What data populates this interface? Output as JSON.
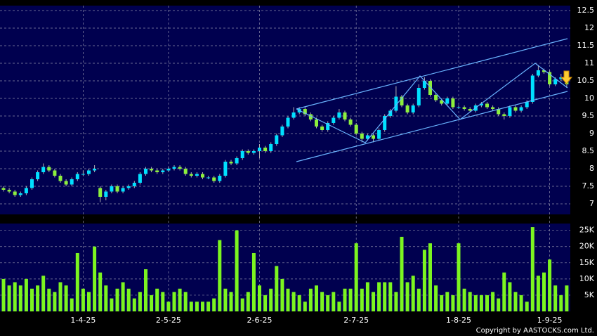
{
  "chart_data": [
    {
      "type": "candlestick",
      "up_color": "#00e0ff",
      "down_color": "#8cf03c",
      "grid": true,
      "ylim": [
        6.7,
        12.64
      ],
      "yticks": [
        7,
        7.5,
        8,
        8.5,
        9,
        9.5,
        10,
        10.5,
        11,
        11.5,
        12,
        12.5
      ],
      "open": [
        7.45,
        7.4,
        7.35,
        7.25,
        7.3,
        7.45,
        7.7,
        7.9,
        8.05,
        7.95,
        7.8,
        7.65,
        7.55,
        7.7,
        7.85,
        7.85,
        7.95,
        7.45,
        7.2,
        7.35,
        7.5,
        7.35,
        7.45,
        7.5,
        7.6,
        7.85,
        8.0,
        7.95,
        7.9,
        7.95,
        8.0,
        8.05,
        8.0,
        7.85,
        7.8,
        7.85,
        7.75,
        7.75,
        7.65,
        7.8,
        8.2,
        8.15,
        8.3,
        8.5,
        8.45,
        8.5,
        8.6,
        8.5,
        8.7,
        8.95,
        9.2,
        9.45,
        9.6,
        9.7,
        9.55,
        9.4,
        9.2,
        9.1,
        9.3,
        9.45,
        9.6,
        9.4,
        9.25,
        9.0,
        8.85,
        8.95,
        8.85,
        9.1,
        9.5,
        9.65,
        10.05,
        9.8,
        9.6,
        9.8,
        10.3,
        10.5,
        10.1,
        9.95,
        9.85,
        10.0,
        9.75,
        9.75,
        9.7,
        9.65,
        9.8,
        9.85,
        9.75,
        9.7,
        9.55,
        9.5,
        9.75,
        9.65,
        9.75,
        9.9,
        10.65,
        10.8,
        10.75,
        10.4,
        10.55,
        10.6
      ],
      "high": [
        7.5,
        7.45,
        7.4,
        7.35,
        7.5,
        7.75,
        7.95,
        8.15,
        8.1,
        8.0,
        7.85,
        7.7,
        7.75,
        7.9,
        7.95,
        8.0,
        8.1,
        7.5,
        7.4,
        7.55,
        7.55,
        7.5,
        7.55,
        7.65,
        7.9,
        8.05,
        8.05,
        8.0,
        8.0,
        8.05,
        8.1,
        8.1,
        8.05,
        7.9,
        7.9,
        7.9,
        7.8,
        7.8,
        7.85,
        8.25,
        8.25,
        8.35,
        8.55,
        8.55,
        8.55,
        8.7,
        8.65,
        8.75,
        9.0,
        9.25,
        9.5,
        9.75,
        9.75,
        9.75,
        9.6,
        9.45,
        9.25,
        9.35,
        9.5,
        9.7,
        9.65,
        9.45,
        9.3,
        9.05,
        9.0,
        9.0,
        9.15,
        9.55,
        9.7,
        10.35,
        10.1,
        9.85,
        9.85,
        10.4,
        10.6,
        10.55,
        10.15,
        10.0,
        10.05,
        10.05,
        9.8,
        9.8,
        9.75,
        9.85,
        9.9,
        9.9,
        9.8,
        9.75,
        9.6,
        9.8,
        9.8,
        9.8,
        9.95,
        10.7,
        10.95,
        10.85,
        10.8,
        10.6,
        10.7,
        10.65
      ],
      "low": [
        7.35,
        7.3,
        7.2,
        7.2,
        7.25,
        7.4,
        7.65,
        7.85,
        7.9,
        7.75,
        7.6,
        7.5,
        7.5,
        7.65,
        7.8,
        7.8,
        7.9,
        7.05,
        7.1,
        7.3,
        7.3,
        7.3,
        7.4,
        7.45,
        7.55,
        7.8,
        7.9,
        7.85,
        7.85,
        7.9,
        7.95,
        7.95,
        7.8,
        7.75,
        7.75,
        7.7,
        7.7,
        7.6,
        7.6,
        7.75,
        8.1,
        8.1,
        8.25,
        8.4,
        8.4,
        8.3,
        8.45,
        8.45,
        8.65,
        8.9,
        9.15,
        9.4,
        9.55,
        9.5,
        9.35,
        9.15,
        9.05,
        9.05,
        9.25,
        9.4,
        9.35,
        9.2,
        8.95,
        8.75,
        8.8,
        8.75,
        8.8,
        9.05,
        9.45,
        9.6,
        9.75,
        9.55,
        9.55,
        9.75,
        10.25,
        10.05,
        9.9,
        9.8,
        9.8,
        9.7,
        9.7,
        9.65,
        9.6,
        9.6,
        9.75,
        9.7,
        9.65,
        9.5,
        9.4,
        9.45,
        9.6,
        9.6,
        9.7,
        9.85,
        10.6,
        10.7,
        10.35,
        10.35,
        10.5,
        10.3
      ],
      "close": [
        7.4,
        7.35,
        7.25,
        7.3,
        7.45,
        7.7,
        7.9,
        8.05,
        7.95,
        7.8,
        7.65,
        7.55,
        7.7,
        7.85,
        7.85,
        7.95,
        8.0,
        7.2,
        7.35,
        7.5,
        7.35,
        7.45,
        7.5,
        7.6,
        7.85,
        8.0,
        7.95,
        7.9,
        7.95,
        8.0,
        8.05,
        8.0,
        7.85,
        7.8,
        7.85,
        7.75,
        7.75,
        7.65,
        7.8,
        8.2,
        8.15,
        8.3,
        8.5,
        8.45,
        8.5,
        8.6,
        8.5,
        8.7,
        8.95,
        9.2,
        9.45,
        9.6,
        9.7,
        9.55,
        9.4,
        9.2,
        9.1,
        9.3,
        9.45,
        9.6,
        9.4,
        9.25,
        9.0,
        8.85,
        8.95,
        8.85,
        9.1,
        9.5,
        9.65,
        10.05,
        9.8,
        9.6,
        9.8,
        10.3,
        10.5,
        10.1,
        9.95,
        9.85,
        10.0,
        9.75,
        9.75,
        9.7,
        9.65,
        9.8,
        9.85,
        9.75,
        9.7,
        9.55,
        9.5,
        9.75,
        9.65,
        9.75,
        9.9,
        10.65,
        10.8,
        10.75,
        10.4,
        10.55,
        10.6,
        10.4
      ]
    },
    {
      "type": "bar",
      "color": "#7cf520",
      "grid": true,
      "ylim": [
        0,
        27100
      ],
      "yticks": [
        {
          "value": 5000,
          "label": "5K"
        },
        {
          "value": 10000,
          "label": "10K"
        },
        {
          "value": 15000,
          "label": "15K"
        },
        {
          "value": 20000,
          "label": "20K"
        },
        {
          "value": 25000,
          "label": "25K"
        }
      ],
      "categories": [
        null,
        null,
        null,
        null,
        null,
        null,
        null,
        null,
        null,
        null,
        null,
        null,
        null,
        null,
        "1-4-25",
        null,
        null,
        null,
        null,
        null,
        null,
        null,
        null,
        null,
        null,
        null,
        null,
        null,
        null,
        "2-5-25",
        null,
        null,
        null,
        null,
        null,
        null,
        null,
        null,
        null,
        null,
        null,
        null,
        null,
        null,
        null,
        "2-6-25",
        null,
        null,
        null,
        null,
        null,
        null,
        null,
        null,
        null,
        null,
        null,
        null,
        null,
        null,
        null,
        null,
        "2-7-25",
        null,
        null,
        null,
        null,
        null,
        null,
        null,
        null,
        null,
        null,
        null,
        null,
        null,
        null,
        null,
        null,
        null,
        "1-8-25",
        null,
        null,
        null,
        null,
        null,
        null,
        null,
        null,
        null,
        null,
        null,
        null,
        null,
        null,
        null,
        "1-9-25",
        null,
        null,
        null
      ],
      "values": [
        10000,
        8000,
        9000,
        8000,
        10000,
        7000,
        8000,
        11000,
        7000,
        6000,
        9000,
        8000,
        4000,
        18000,
        7000,
        6000,
        20000,
        12000,
        8000,
        4000,
        7000,
        9000,
        7000,
        4000,
        6000,
        13000,
        5000,
        7000,
        6000,
        3000,
        6000,
        7000,
        6000,
        3000,
        3000,
        3000,
        3000,
        4000,
        22000,
        7000,
        6000,
        25000,
        4000,
        6000,
        18000,
        8000,
        5000,
        7000,
        14000,
        10000,
        7000,
        6000,
        5000,
        3000,
        7000,
        8000,
        6000,
        5000,
        6000,
        3000,
        7000,
        7000,
        21000,
        7000,
        9000,
        6000,
        9000,
        9000,
        9000,
        6000,
        23000,
        9000,
        11000,
        7000,
        19000,
        21000,
        8000,
        5000,
        6000,
        5000,
        21000,
        7000,
        6000,
        5000,
        5000,
        5000,
        6000,
        4000,
        12000,
        9000,
        6000,
        5000,
        3000,
        26000,
        11000,
        12000,
        16000,
        8000,
        5000,
        8000
      ]
    }
  ],
  "copyright": "Copyright by AASTOCKS.com Ltd."
}
